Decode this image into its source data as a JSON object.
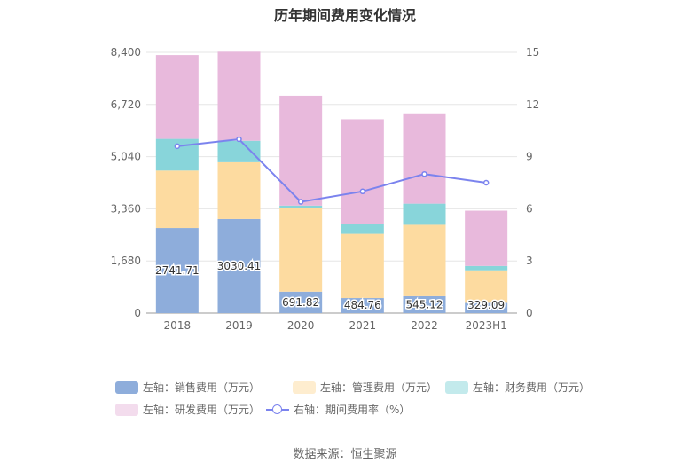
{
  "chart_data": {
    "type": "bar",
    "title": "历年期间费用变化情况",
    "categories": [
      "2018",
      "2019",
      "2020",
      "2021",
      "2022",
      "2023H1"
    ],
    "stacked": true,
    "left_axis": {
      "min": 0,
      "max": 8400,
      "ticks": [
        "0",
        "1,680",
        "3,360",
        "5,040",
        "6,720",
        "8,400"
      ]
    },
    "right_axis": {
      "min": 0,
      "max": 15,
      "ticks": [
        "0",
        "3",
        "6",
        "9",
        "12",
        "15"
      ]
    },
    "grid": true,
    "legend_position": "bottom",
    "series": [
      {
        "name": "左轴：销售费用（万元）",
        "axis": "left",
        "type": "bar",
        "color": "#8eaddb",
        "values": [
          2741.71,
          3030.41,
          691.82,
          484.76,
          545.12,
          329.09
        ],
        "labels": [
          "2741.71",
          "3030.41",
          "691.82",
          "484.76",
          "545.12",
          "329.09"
        ]
      },
      {
        "name": "左轴：管理费用（万元）",
        "axis": "left",
        "type": "bar",
        "color": "#fddba0",
        "values": [
          1850,
          1830,
          2690,
          2070,
          2300,
          1050
        ]
      },
      {
        "name": "左轴：财务费用（万元）",
        "axis": "left",
        "type": "bar",
        "color": "#88d5da",
        "values": [
          1020,
          690,
          80,
          320,
          680,
          140
        ]
      },
      {
        "name": "左轴：研发费用（万元）",
        "axis": "left",
        "type": "bar",
        "color": "#e8b9dc",
        "values": [
          2700,
          2870,
          3540,
          3370,
          2910,
          1780
        ]
      },
      {
        "name": "右轴：期间费用率（%）",
        "axis": "right",
        "type": "line",
        "color": "#7b83ee",
        "values": [
          9.6,
          10.0,
          6.4,
          7.0,
          8.0,
          7.5
        ]
      }
    ]
  },
  "source": "数据来源：恒生聚源"
}
